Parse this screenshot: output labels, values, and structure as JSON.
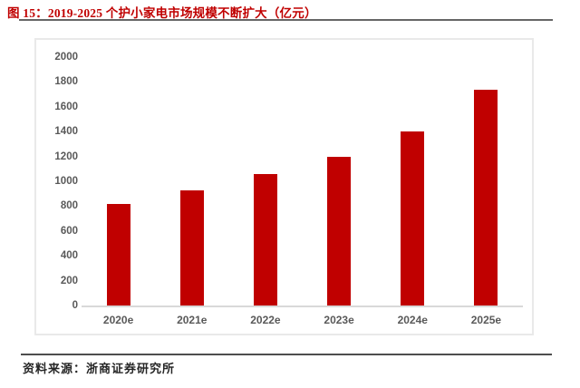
{
  "header": {
    "title": "图 15：2019-2025 个护小家电市场规模不断扩大（亿元）"
  },
  "footer": {
    "source": "资料来源：浙商证券研究所"
  },
  "colors": {
    "title": "#c00000",
    "bar": "#c00000",
    "axis_text": "#595959",
    "baseline": "#d9d9d9",
    "frame_border": "#e9e9e9",
    "title_rule": "#666666",
    "bottom_rule": "#4d4d4d",
    "source_text": "#262626"
  },
  "chart_data": {
    "type": "bar",
    "title": "图 15：2019-2025 个护小家电市场规模不断扩大（亿元）",
    "categories": [
      "2020e",
      "2021e",
      "2022e",
      "2023e",
      "2024e",
      "2025e"
    ],
    "values": [
      820,
      925,
      1055,
      1200,
      1405,
      1740
    ],
    "series_name": "个护小家电市场规模",
    "unit": "亿元",
    "xlabel": "",
    "ylabel": "",
    "ylim": [
      0,
      2000
    ],
    "yticks": [
      0,
      200,
      400,
      600,
      800,
      1000,
      1200,
      1400,
      1600,
      1800,
      2000
    ],
    "grid": false,
    "legend": false,
    "bar_color": "#c00000"
  }
}
